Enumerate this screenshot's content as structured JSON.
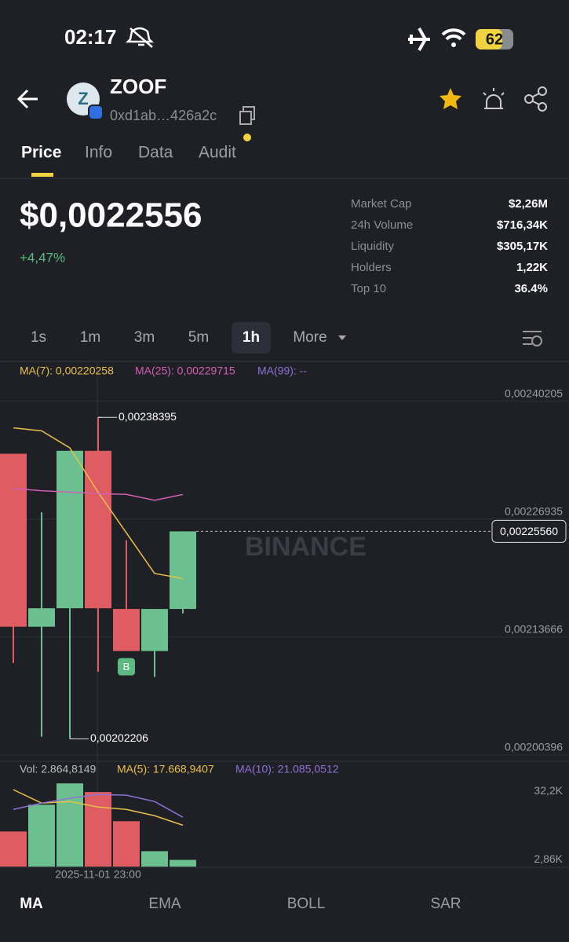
{
  "status": {
    "time": "02:17",
    "battery": "62"
  },
  "header": {
    "name": "ZOOF",
    "address": "0xd1ab…426a2c"
  },
  "tabs": [
    "Price",
    "Info",
    "Data",
    "Audit"
  ],
  "price": {
    "value": "$0,0022556",
    "change": "+4,47%"
  },
  "stats": [
    [
      "Market Cap",
      "$2,26M"
    ],
    [
      "24h Volume",
      "$716,34K"
    ],
    [
      "Liquidity",
      "$305,17K"
    ],
    [
      "Holders",
      "1,22K"
    ],
    [
      "Top 10",
      "36.4%"
    ]
  ],
  "intervals": [
    "1s",
    "1m",
    "3m",
    "5m",
    "1h",
    "More"
  ],
  "chart_data": [
    {
      "type": "candlestick",
      "up_color": "#6cbf8e",
      "down_color": "#df5c62",
      "ylim": [
        0.0019977,
        0.0024204
      ],
      "yticks": [
        {
          "value": 0.00240205,
          "label": "0,00240205"
        },
        {
          "value": 0.00226935,
          "label": "0,00226935"
        },
        {
          "value": 0.00213666,
          "label": "0,00213666"
        },
        {
          "value": 0.00200396,
          "label": "0,00200396"
        }
      ],
      "grid": true,
      "open": [
        0.002343,
        0.0021483,
        0.0021691,
        0.0023463,
        0.0021683,
        0.0021209,
        0.0021683
      ],
      "high": [
        0.002343,
        0.0022773,
        0.0023463,
        0.00238395,
        0.0022456,
        0.0021683,
        0.0022556
      ],
      "low": [
        0.0021075,
        0.0020244,
        0.00202206,
        0.0020976,
        0.0021209,
        0.0020917,
        0.0021633
      ],
      "close": [
        0.0021483,
        0.0021691,
        0.0023463,
        0.0021691,
        0.0021209,
        0.0021683,
        0.0022556
      ],
      "series": [
        {
          "name": "MA(7): 0,00220258",
          "color": "#e9c04a",
          "values": [
            0.0023721,
            0.0023688,
            0.0023496,
            0.0022997,
            0.002254,
            0.0022082,
            0.00220258
          ]
        },
        {
          "name": "MA(25): 0,00229715",
          "color": "#d35fb4",
          "values": [
            0.0023039,
            0.0023014,
            0.0022998,
            0.0022981,
            0.0022973,
            0.0022906,
            0.00229715
          ]
        },
        {
          "name": "MA(99): --",
          "color": "#8f72d6",
          "values": []
        }
      ],
      "annotations": [
        {
          "value": 0.00238395,
          "label": "0,00238395",
          "index": 3
        },
        {
          "value": 0.00202206,
          "label": "0,00202206",
          "index": 2
        }
      ],
      "current": {
        "value": 0.0022556,
        "label": "0,00225560"
      },
      "marker": {
        "label": "B",
        "index": 4
      },
      "watermark": "BINANCE"
    },
    {
      "type": "volume",
      "title": "Vol: 2.864,8149",
      "ylim": [
        0,
        44650
      ],
      "yticks": [
        {
          "value": 32200,
          "label": "32,2K"
        },
        {
          "value": 2860,
          "label": "2,86K"
        }
      ],
      "values": [
        15000,
        26450,
        35550,
        31850,
        19380,
        6570,
        2864.8149
      ],
      "series": [
        {
          "name": "MA(5): 17.668,9407",
          "color": "#e9c04a",
          "values": [
            32858,
            27127,
            27800,
            25443,
            24432,
            21736,
            17668.9407
          ]
        },
        {
          "name": "MA(10): 21.085,0512",
          "color": "#8f72d6",
          "values": [
            24432,
            27127,
            29149,
            30834,
            30497,
            27800,
            21085.0512
          ]
        }
      ],
      "x_label": {
        "index": 3,
        "label": "2025-11-01 23:00"
      }
    }
  ],
  "indicator_tabs": [
    "MA",
    "EMA",
    "BOLL",
    "SAR"
  ]
}
